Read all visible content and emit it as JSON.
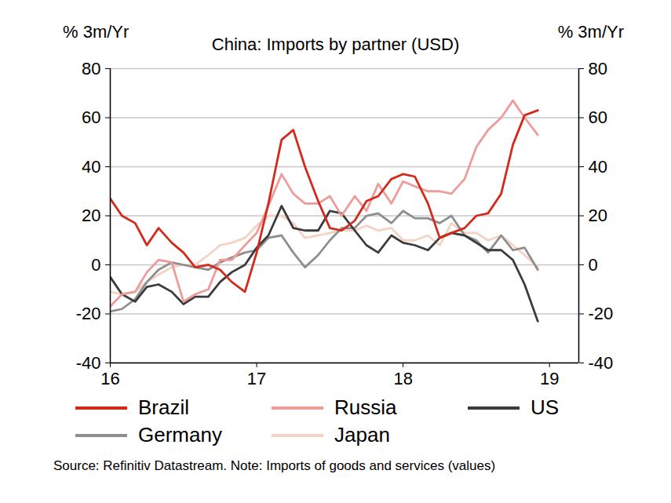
{
  "chart_data": {
    "type": "line",
    "title": "China: Imports by partner (USD)",
    "ylabel": "% 3m/Yr",
    "y2label": "% 3m/Yr",
    "caption": "Source: Refinitiv Datastream. Note: Imports of goods and services (values)",
    "x": [
      16,
      16.08,
      16.17,
      16.25,
      16.33,
      16.42,
      16.5,
      16.58,
      16.67,
      16.75,
      16.83,
      16.92,
      17,
      17.08,
      17.17,
      17.25,
      17.33,
      17.42,
      17.5,
      17.58,
      17.67,
      17.75,
      17.83,
      17.92,
      18,
      18.08,
      18.17,
      18.25,
      18.33,
      18.42,
      18.5,
      18.58,
      18.67,
      18.75,
      18.83,
      18.92
    ],
    "xlim": [
      16,
      19.2
    ],
    "xticks": [
      16,
      17,
      18,
      19
    ],
    "ylim": [
      -40,
      80
    ],
    "yticks": [
      -40,
      -20,
      0,
      20,
      40,
      60,
      80
    ],
    "y2lim": [
      -40,
      80
    ],
    "y2ticks": [
      -40,
      -20,
      0,
      20,
      40,
      60,
      80
    ],
    "grid": true,
    "legend": "bottom",
    "series": [
      {
        "name": "Brazil",
        "color": "#d42a1c",
        "values": [
          27,
          20,
          17,
          8,
          15,
          9,
          5,
          -1,
          0,
          -2,
          -7,
          -11,
          5,
          25,
          51,
          55,
          40,
          26,
          15,
          14,
          18,
          26,
          28,
          35,
          37,
          36,
          25,
          11,
          13,
          15,
          20,
          21,
          29,
          49,
          61,
          63
        ]
      },
      {
        "name": "Russia",
        "color": "#ee9c9a",
        "values": [
          -17,
          -12,
          -11,
          -3,
          2,
          1,
          -15,
          -12,
          -10,
          2,
          2,
          8,
          13,
          24,
          37,
          29,
          25,
          25,
          28,
          20,
          28,
          22,
          33,
          25,
          34,
          32,
          30,
          30,
          29,
          35,
          48,
          55,
          60,
          67,
          60,
          53
        ]
      },
      {
        "name": "US",
        "color": "#3b3b3d",
        "values": [
          -5,
          -12,
          -15,
          -9,
          -8,
          -11,
          -16,
          -13,
          -13,
          -7,
          -3,
          0,
          7,
          12,
          24,
          15,
          14,
          14,
          22,
          21,
          14,
          8,
          5,
          12,
          9,
          8,
          6,
          11,
          13,
          12,
          9,
          6,
          6,
          2,
          -8,
          -23
        ]
      },
      {
        "name": "Germany",
        "color": "#8e8e8e",
        "values": [
          -19,
          -18,
          -14,
          -7,
          -2,
          1,
          0,
          -1,
          -2,
          1,
          3,
          5,
          6,
          11,
          12,
          5,
          -1,
          4,
          10,
          15,
          15,
          20,
          21,
          17,
          22,
          19,
          19,
          17,
          20,
          12,
          10,
          5,
          12,
          6,
          7,
          -2
        ]
      },
      {
        "name": "Japan",
        "color": "#f4d3c3",
        "values": [
          -11,
          -12,
          -11,
          -7,
          -4,
          -1,
          0,
          0,
          4,
          8,
          9,
          11,
          16,
          20,
          20,
          17,
          11,
          12,
          13,
          14,
          14,
          16,
          14,
          15,
          10,
          10,
          12,
          8,
          17,
          13,
          13,
          10,
          12,
          8,
          4,
          -1
        ]
      }
    ]
  }
}
